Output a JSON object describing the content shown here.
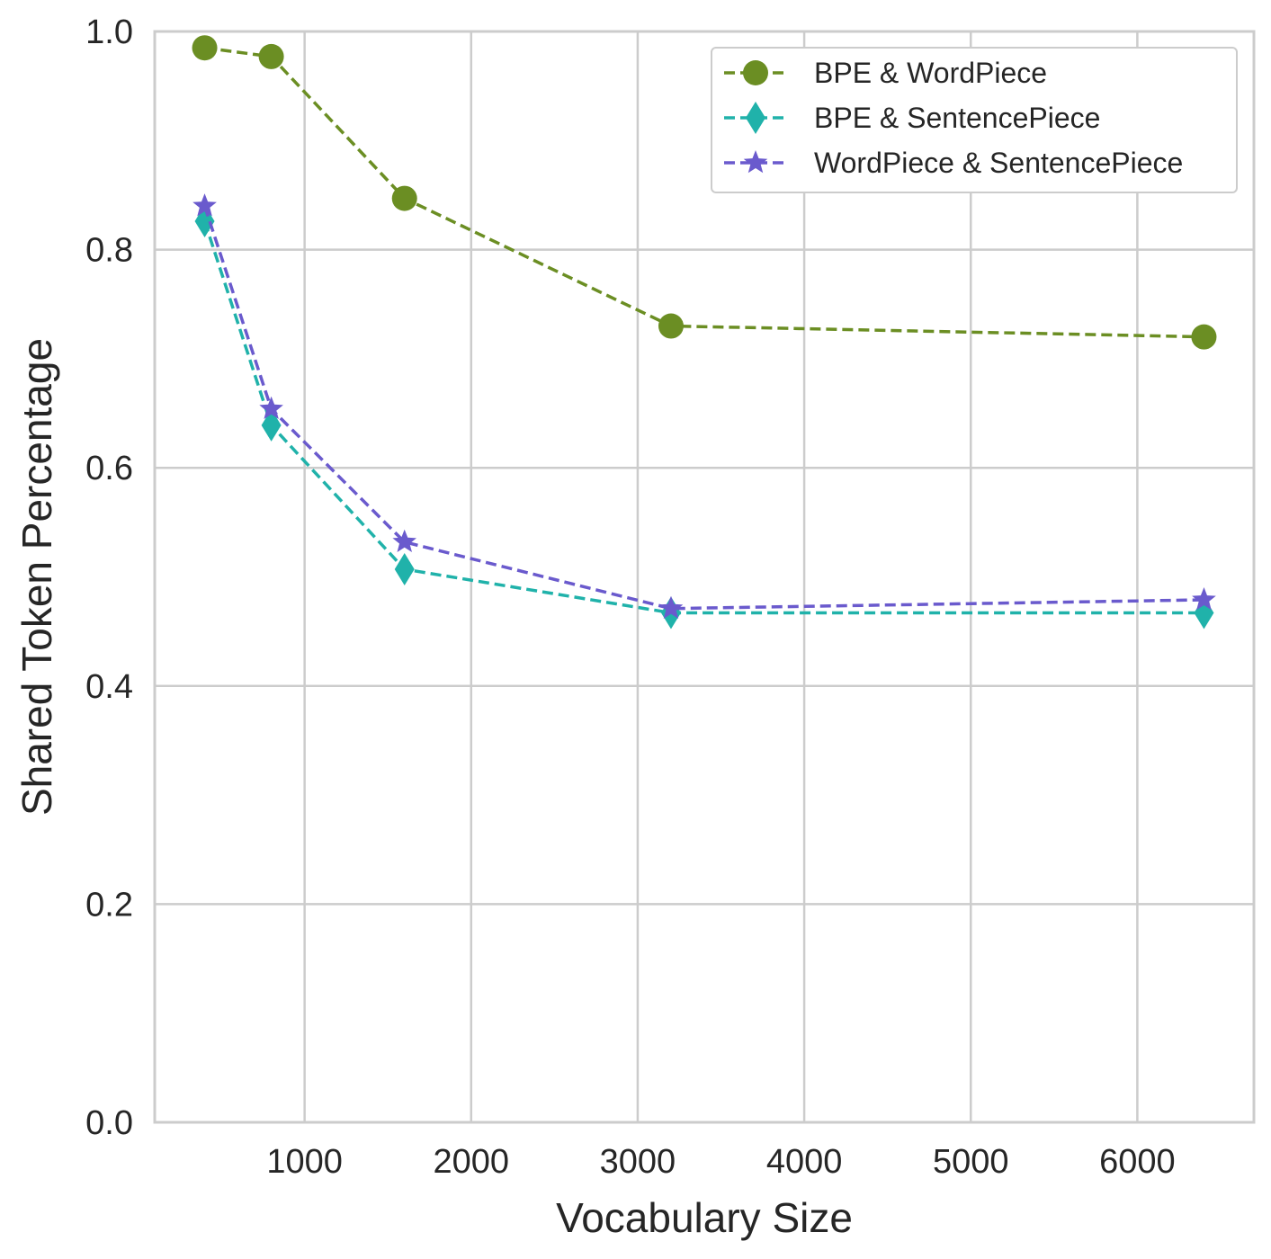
{
  "chart_data": {
    "type": "line",
    "title": "",
    "xlabel": "Vocabulary Size",
    "ylabel": "Shared Token Percentage",
    "xlim": [
      100,
      6700
    ],
    "ylim": [
      0.0,
      1.0
    ],
    "x_ticks": [
      1000,
      2000,
      3000,
      4000,
      5000,
      6000
    ],
    "x_tick_labels": [
      "1000",
      "2000",
      "3000",
      "4000",
      "5000",
      "6000"
    ],
    "y_ticks": [
      0.0,
      0.2,
      0.4,
      0.6,
      0.8,
      1.0
    ],
    "y_tick_labels": [
      "0.0",
      "0.2",
      "0.4",
      "0.6",
      "0.8",
      "1.0"
    ],
    "grid": true,
    "legend_position": "top-right",
    "x": [
      400,
      800,
      1600,
      3200,
      6400
    ],
    "series": [
      {
        "name": "BPE & WordPiece",
        "values": [
          0.985,
          0.977,
          0.847,
          0.73,
          0.72
        ],
        "color": "#6b8e23",
        "marker": "circle"
      },
      {
        "name": "BPE & SentencePiece",
        "values": [
          0.826,
          0.639,
          0.507,
          0.467,
          0.467
        ],
        "color": "#20b2aa",
        "marker": "diamond"
      },
      {
        "name": "WordPiece & SentencePiece",
        "values": [
          0.84,
          0.654,
          0.532,
          0.471,
          0.479
        ],
        "color": "#6a5acd",
        "marker": "star"
      }
    ]
  }
}
